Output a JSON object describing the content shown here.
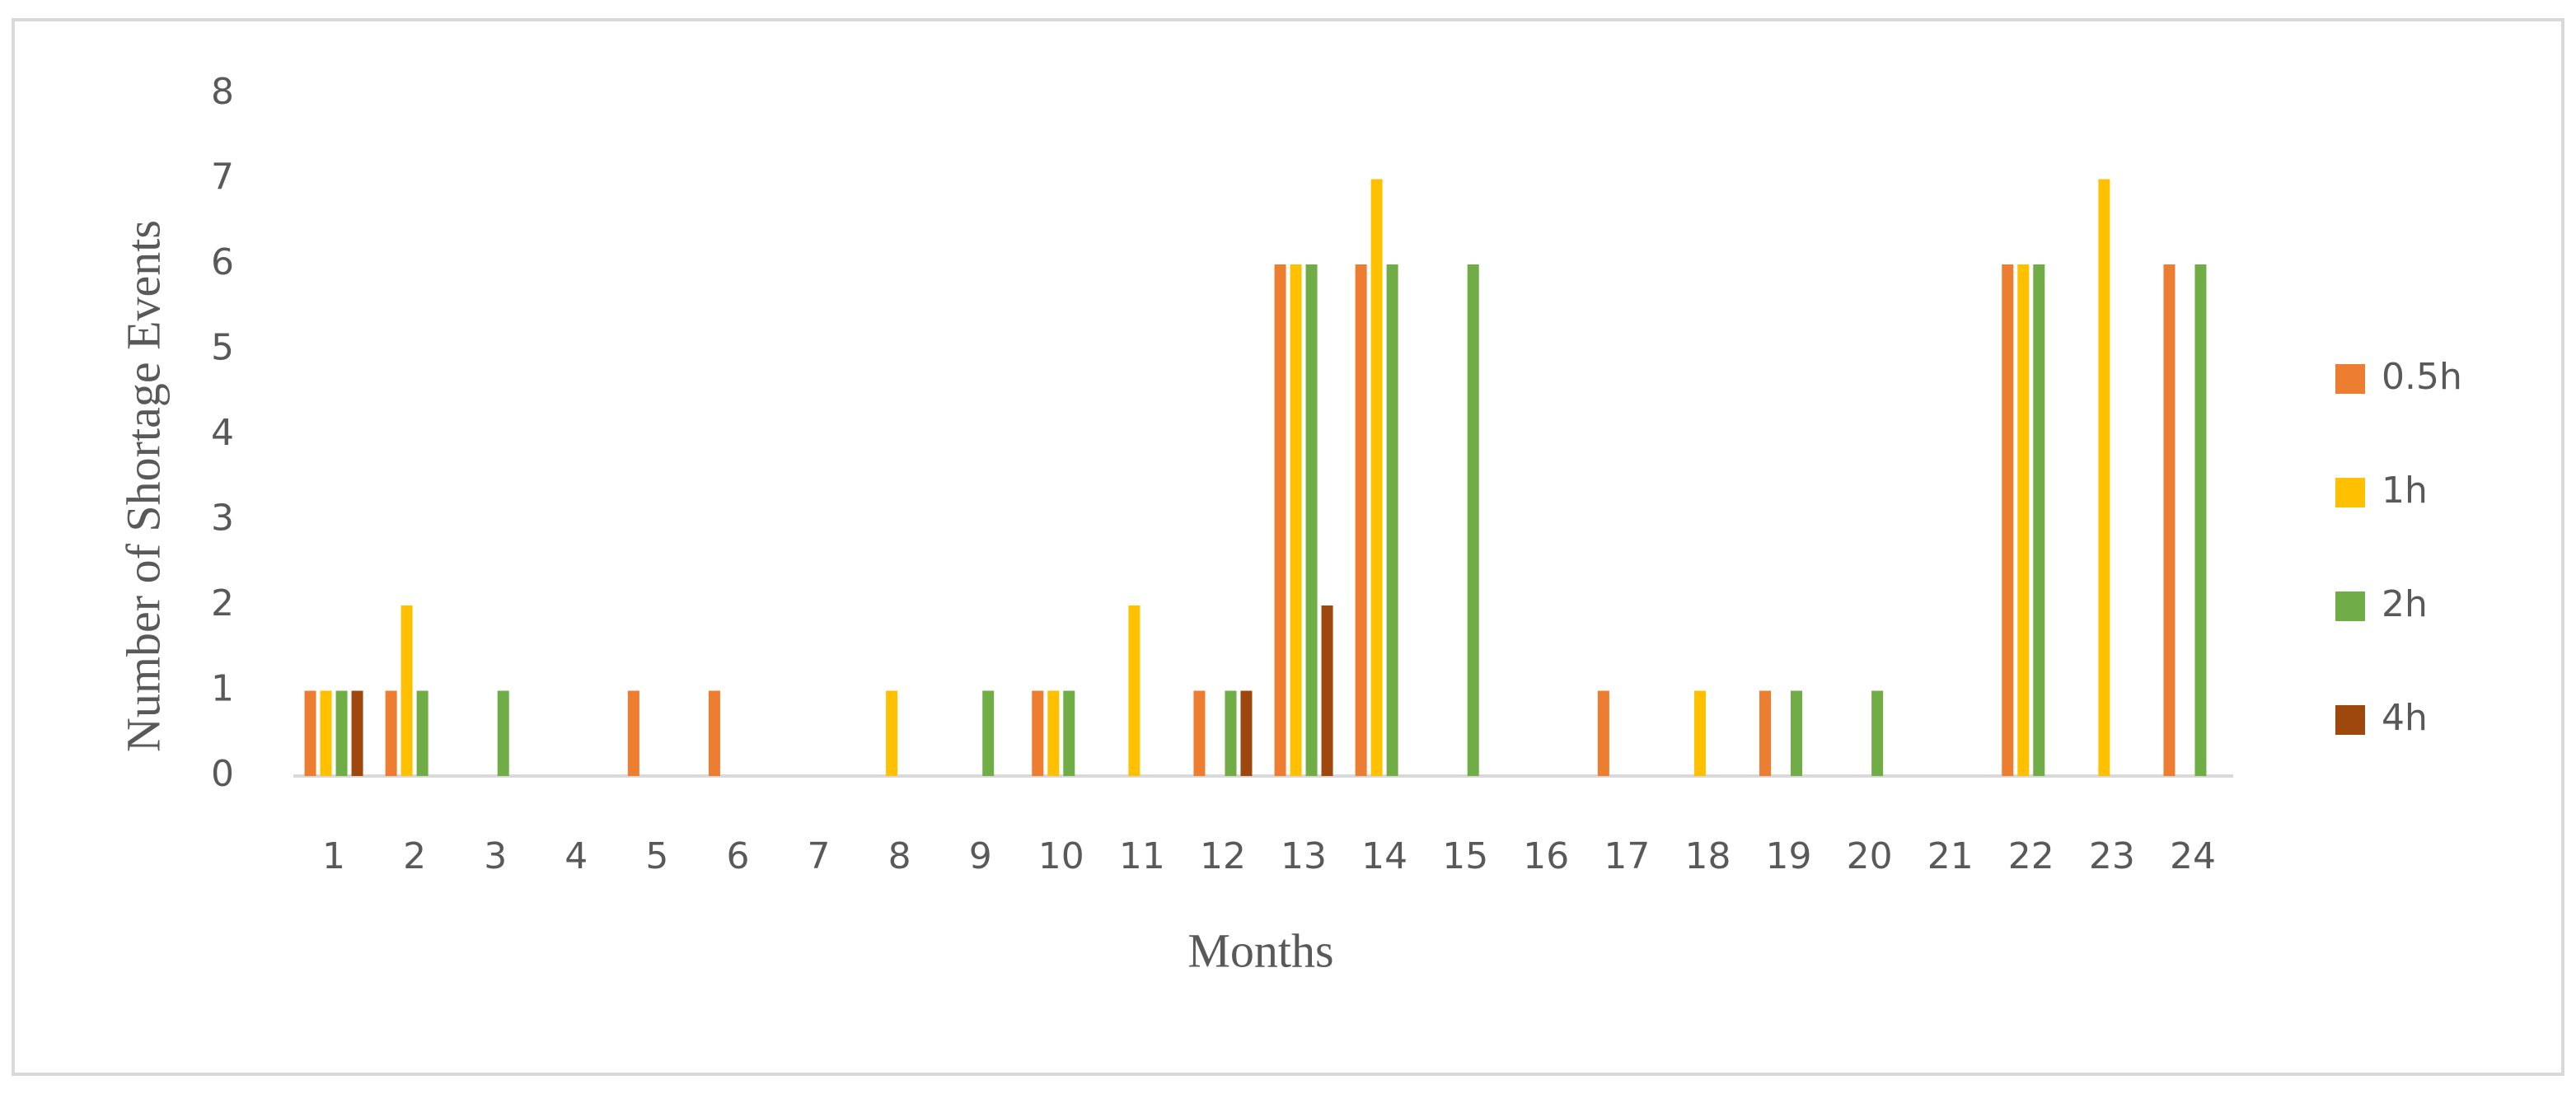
{
  "chart_data": {
    "type": "bar",
    "x_label": "Months",
    "y_label": "Number of Shortage Events",
    "categories": [
      "1",
      "2",
      "3",
      "4",
      "5",
      "6",
      "7",
      "8",
      "9",
      "10",
      "11",
      "12",
      "13",
      "14",
      "15",
      "16",
      "17",
      "18",
      "19",
      "20",
      "21",
      "22",
      "23",
      "24"
    ],
    "series": [
      {
        "name": "0.5h",
        "color": "#ED7D31",
        "values": [
          1,
          1,
          0,
          0,
          1,
          1,
          0,
          0,
          0,
          1,
          0,
          1,
          6,
          6,
          0,
          0,
          1,
          0,
          1,
          0,
          0,
          6,
          0,
          6
        ]
      },
      {
        "name": "1h",
        "color": "#FFC000",
        "values": [
          1,
          2,
          0,
          0,
          0,
          0,
          0,
          1,
          0,
          1,
          2,
          0,
          6,
          7,
          0,
          0,
          0,
          1,
          0,
          0,
          0,
          6,
          7,
          0
        ]
      },
      {
        "name": "2h",
        "color": "#70AD47",
        "values": [
          1,
          1,
          1,
          0,
          0,
          0,
          0,
          0,
          1,
          1,
          0,
          1,
          6,
          6,
          6,
          0,
          0,
          0,
          1,
          1,
          0,
          6,
          0,
          6
        ]
      },
      {
        "name": "4h",
        "color": "#9E480E",
        "values": [
          1,
          0,
          0,
          0,
          0,
          0,
          0,
          0,
          0,
          0,
          0,
          1,
          2,
          0,
          0,
          0,
          0,
          0,
          0,
          0,
          0,
          0,
          0,
          0
        ]
      }
    ],
    "ylim": [
      0,
      8
    ],
    "yticks": [
      0,
      1,
      2,
      3,
      4,
      5,
      6,
      7,
      8
    ],
    "grid": false,
    "legend": "right"
  }
}
